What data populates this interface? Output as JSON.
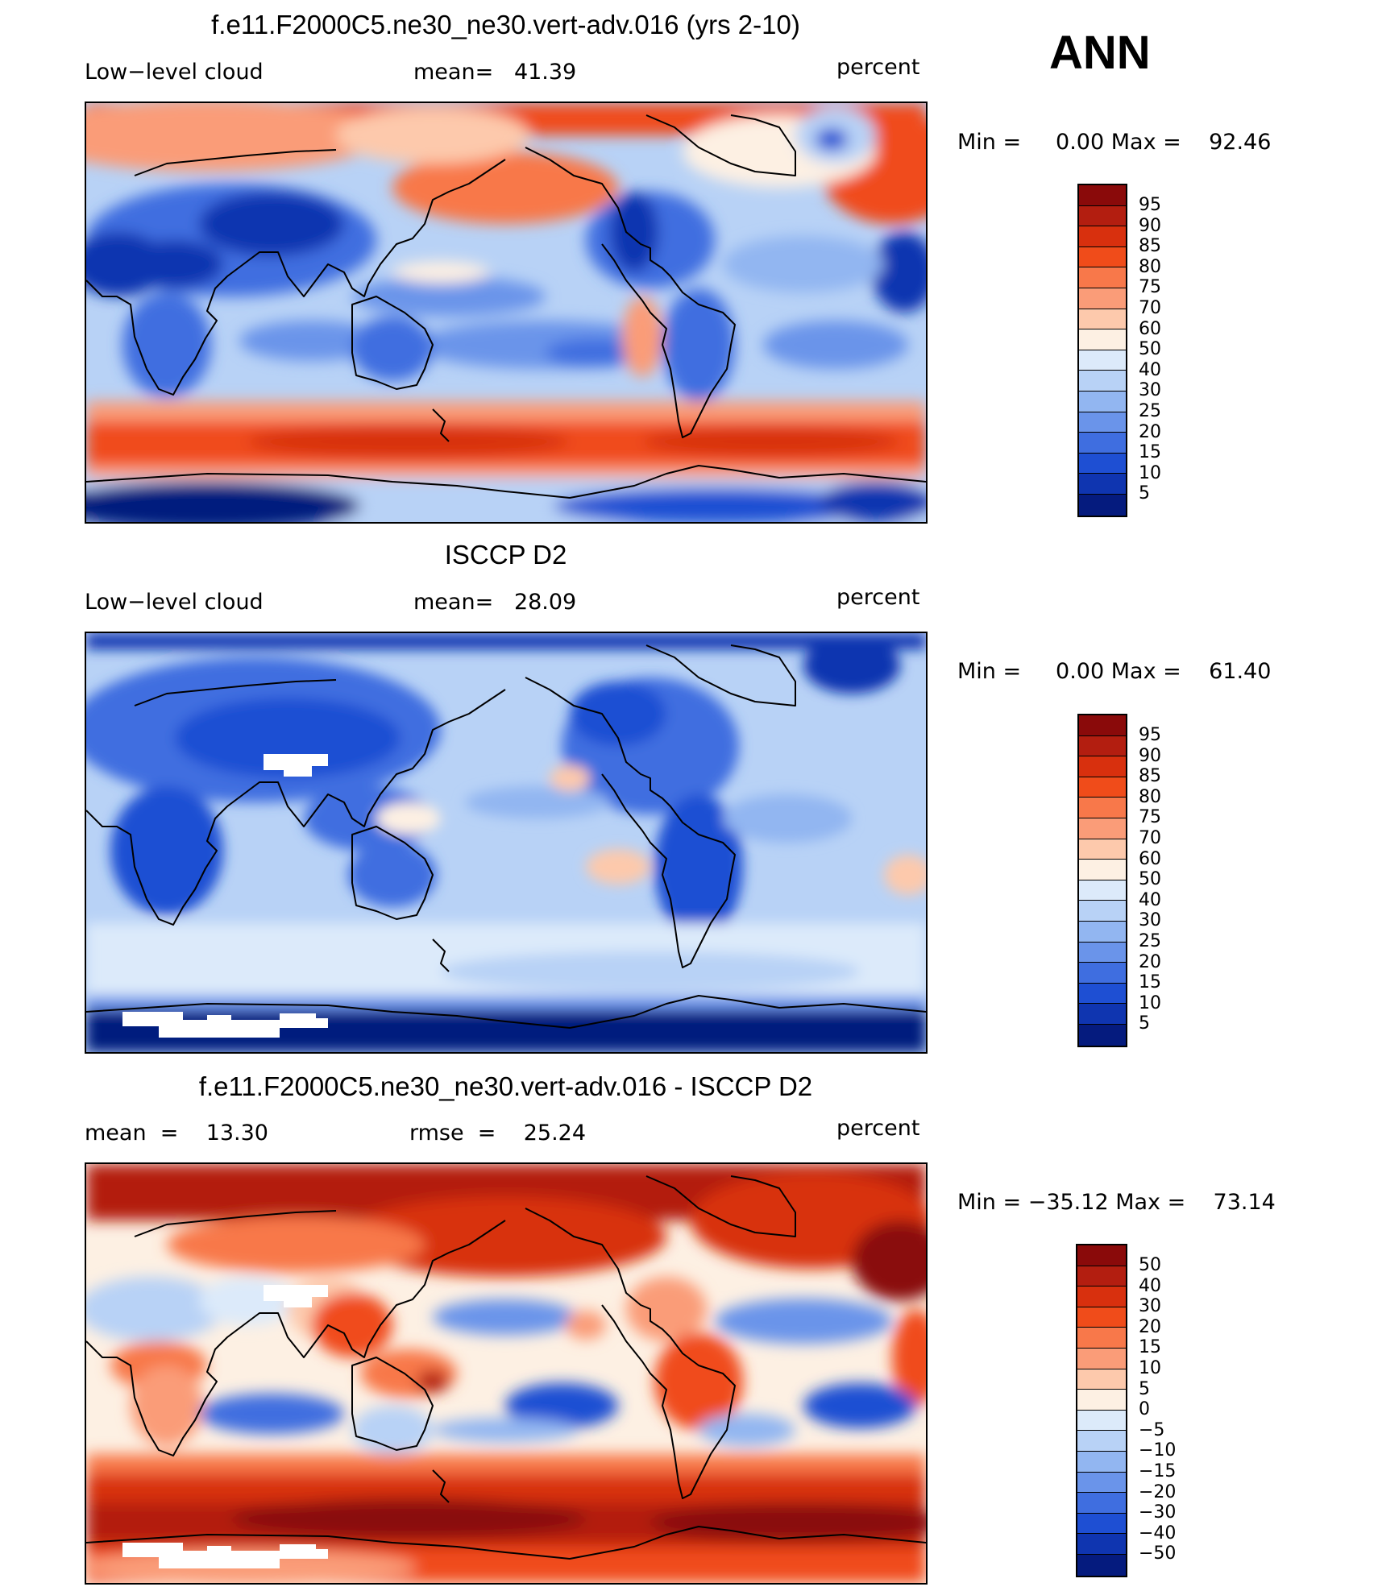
{
  "season": "ANN",
  "palette_abs": [
    "#8a0a0a",
    "#b31e10",
    "#d8300e",
    "#f04c1a",
    "#f8784a",
    "#fa9c78",
    "#fdc9ac",
    "#fdf0e3",
    "#dceafa",
    "#b8d2f6",
    "#92b6f1",
    "#6a94ea",
    "#3f6ee0",
    "#1e4fd3",
    "#0f35b0",
    "#051b7e"
  ],
  "palette_diff": [
    "#8a0a0a",
    "#b31e10",
    "#d8300e",
    "#f04c1a",
    "#f8784a",
    "#fa9c78",
    "#fdc9ac",
    "#fdf0e3",
    "#dceafa",
    "#b8d2f6",
    "#92b6f1",
    "#6a94ea",
    "#3f6ee0",
    "#1e4fd3",
    "#0f35b0",
    "#051b7e"
  ],
  "panels": [
    {
      "title": "f.e11.F2000C5.ne30_ne30.vert-adv.016 (yrs 2-10)",
      "left_label": "Low−level cloud",
      "center_label": "mean=   41.39",
      "right_label": "percent",
      "stats": "Min =     0.00 Max =    92.46",
      "cbar_labels": [
        "95",
        "90",
        "85",
        "80",
        "75",
        "70",
        "60",
        "50",
        "40",
        "30",
        "25",
        "20",
        "15",
        "10",
        "5"
      ],
      "map_id": "model"
    },
    {
      "title": "ISCCP D2",
      "left_label": "Low−level cloud",
      "center_label": "mean=   28.09",
      "right_label": "percent",
      "stats": "Min =     0.00 Max =    61.40",
      "cbar_labels": [
        "95",
        "90",
        "85",
        "80",
        "75",
        "70",
        "60",
        "50",
        "40",
        "30",
        "25",
        "20",
        "15",
        "10",
        "5"
      ],
      "map_id": "obs"
    },
    {
      "title": "f.e11.F2000C5.ne30_ne30.vert-adv.016 - ISCCP D2",
      "left_label": "mean  =    13.30",
      "center_label": "rmse  =    25.24",
      "right_label": "percent",
      "stats": "Min = −35.12 Max =    73.14",
      "cbar_labels": [
        "50",
        "40",
        "30",
        "20",
        "15",
        "10",
        "5",
        "0",
        "−5",
        "−10",
        "−15",
        "−20",
        "−30",
        "−40",
        "−50"
      ],
      "map_id": "diff"
    }
  ]
}
